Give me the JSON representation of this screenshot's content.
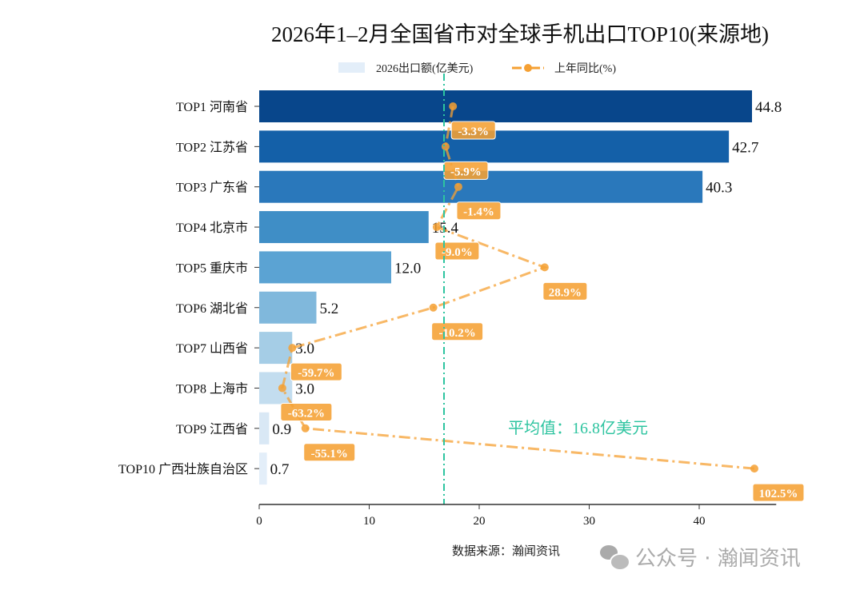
{
  "chart_data": {
    "type": "bar",
    "orientation": "horizontal",
    "title": "2026年1–2月全国省市对全球手机出口TOP10(来源地)",
    "categories": [
      "TOP1 河南省",
      "TOP2 江苏省",
      "TOP3 广东省",
      "TOP4 北京市",
      "TOP5 重庆市",
      "TOP6 湖北省",
      "TOP7 山西省",
      "TOP8 上海市",
      "TOP9 江西省",
      "TOP10 广西壮族自治区"
    ],
    "series": [
      {
        "name": "2026出口额(亿美元)",
        "type": "bar",
        "values": [
          44.8,
          42.7,
          40.3,
          15.4,
          12.0,
          5.2,
          3.0,
          3.0,
          0.9,
          0.7
        ],
        "value_labels": [
          "44.8",
          "42.7",
          "40.3",
          "15.4",
          "12.0",
          "5.2",
          "3.0",
          "3.0",
          "0.9",
          "0.7"
        ]
      },
      {
        "name": "上年同比(%)",
        "type": "line",
        "secondary_axis": true,
        "values": [
          -3.3,
          -5.9,
          -1.4,
          -9.0,
          28.9,
          -10.2,
          -59.7,
          -63.2,
          -55.1,
          102.5
        ],
        "value_labels": [
          "-3.3%",
          "-5.9%",
          "-1.4%",
          "-9.0%",
          "28.9%",
          "-10.2%",
          "-59.7%",
          "-63.2%",
          "-55.1%",
          "102.5%"
        ],
        "color": "#f5a033"
      }
    ],
    "xlim": [
      0,
      47
    ],
    "xticks": [
      "0",
      "10",
      "20",
      "30",
      "40"
    ],
    "bar_colors": [
      "#08468b",
      "#1460a8",
      "#2a78bb",
      "#3f8ec6",
      "#5ba3d3",
      "#80b8dc",
      "#a5cde6",
      "#c3ddef",
      "#d9e8f5",
      "#e3eef9"
    ],
    "average": {
      "value": 16.8,
      "label": "平均值：16.8亿美元",
      "color": "#2ec4a0"
    },
    "grid": false,
    "legend": "top-center",
    "source": "数据来源：瀚闻资讯"
  },
  "watermark": "公众号 · 瀚闻资讯"
}
